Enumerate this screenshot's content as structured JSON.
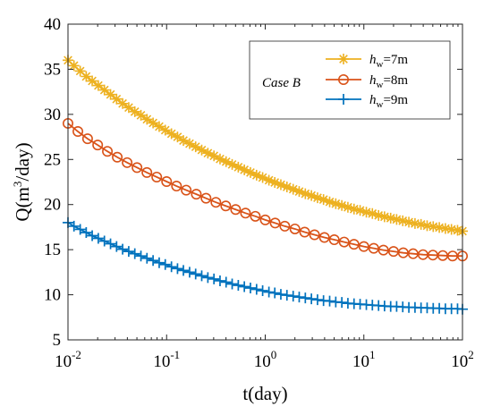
{
  "chart_data": {
    "type": "line",
    "x_scale": "log",
    "xlim": [
      0.01,
      100
    ],
    "ylim": [
      5,
      40
    ],
    "xlabel": "t(day)",
    "ylabel": "Q(m³/day)",
    "ylabel_parts": {
      "pre": "Q(m",
      "sup": "3",
      "post": "/day)"
    },
    "x_ticks": [
      {
        "value": 0.01,
        "base": "10",
        "exp": "-2"
      },
      {
        "value": 0.1,
        "base": "10",
        "exp": "-1"
      },
      {
        "value": 1,
        "base": "10",
        "exp": "0"
      },
      {
        "value": 10,
        "base": "10",
        "exp": "1"
      },
      {
        "value": 100,
        "base": "10",
        "exp": "2"
      }
    ],
    "y_ticks": [
      5,
      10,
      15,
      20,
      25,
      30,
      35,
      40
    ],
    "grid": false,
    "legend": {
      "position": "top-right",
      "title": "Case B"
    },
    "series": [
      {
        "name": "h_w=7m",
        "label_parts": {
          "var": "h",
          "sub": "w",
          "rest": "=7m"
        },
        "color": "#EDB120",
        "marker": "asterisk",
        "x": [
          0.01,
          0.0115,
          0.0133,
          0.0153,
          0.0176,
          0.0203,
          0.0234,
          0.027,
          0.0311,
          0.0358,
          0.0413,
          0.0476,
          0.0549,
          0.0632,
          0.0729,
          0.0841,
          0.0969,
          0.112,
          0.129,
          0.148,
          0.171,
          0.197,
          0.227,
          0.262,
          0.302,
          0.348,
          0.401,
          0.462,
          0.533,
          0.614,
          0.708,
          0.817,
          0.941,
          1.09,
          1.25,
          1.44,
          1.66,
          1.92,
          2.21,
          2.55,
          2.94,
          3.39,
          3.9,
          4.5,
          5.19,
          5.98,
          6.89,
          7.95,
          9.16,
          10.6,
          12.2,
          14.1,
          16.2,
          18.7,
          21.5,
          24.8,
          28.6,
          33,
          38,
          43.8,
          50.5,
          58.2,
          67.1,
          77.3,
          89.1,
          100
        ],
        "y": [
          36.0,
          35.4,
          34.8,
          34.2,
          33.7,
          33.2,
          32.7,
          32.2,
          31.7,
          31.2,
          30.75,
          30.3,
          29.9,
          29.45,
          29.05,
          28.65,
          28.25,
          27.85,
          27.5,
          27.1,
          26.75,
          26.4,
          26.05,
          25.7,
          25.4,
          25.05,
          24.75,
          24.45,
          24.15,
          23.85,
          23.55,
          23.25,
          23.0,
          22.7,
          22.45,
          22.2,
          21.95,
          21.7,
          21.45,
          21.2,
          21.0,
          20.75,
          20.55,
          20.3,
          20.1,
          19.9,
          19.7,
          19.5,
          19.35,
          19.15,
          19.0,
          18.8,
          18.65,
          18.5,
          18.35,
          18.2,
          18.05,
          17.9,
          17.8,
          17.65,
          17.55,
          17.45,
          17.35,
          17.25,
          17.15,
          17.05
        ]
      },
      {
        "name": "h_w=8m",
        "label_parts": {
          "var": "h",
          "sub": "w",
          "rest": "=8m"
        },
        "color": "#D95319",
        "marker": "circle",
        "x": [
          0.01,
          0.0126,
          0.0158,
          0.02,
          0.0251,
          0.0316,
          0.0398,
          0.0501,
          0.0631,
          0.0794,
          0.1,
          0.126,
          0.158,
          0.2,
          0.251,
          0.316,
          0.398,
          0.501,
          0.631,
          0.794,
          1,
          1.26,
          1.58,
          2,
          2.51,
          3.16,
          3.98,
          5.01,
          6.31,
          7.94,
          10,
          12.6,
          15.8,
          20,
          25.1,
          31.6,
          39.8,
          50.1,
          63.1,
          79.4,
          100
        ],
        "y": [
          29.0,
          28.1,
          27.3,
          26.6,
          25.9,
          25.25,
          24.65,
          24.1,
          23.55,
          23.05,
          22.55,
          22.05,
          21.6,
          21.15,
          20.7,
          20.25,
          19.85,
          19.45,
          19.05,
          18.7,
          18.3,
          17.95,
          17.6,
          17.3,
          16.95,
          16.65,
          16.35,
          16.1,
          15.85,
          15.6,
          15.35,
          15.15,
          14.95,
          14.8,
          14.65,
          14.55,
          14.45,
          14.4,
          14.35,
          14.3,
          14.3
        ]
      },
      {
        "name": "h_w=9m",
        "label_parts": {
          "var": "h",
          "sub": "w",
          "rest": "=9m"
        },
        "color": "#0072BD",
        "marker": "plus",
        "x": [
          0.01,
          0.0115,
          0.0133,
          0.0153,
          0.0176,
          0.0203,
          0.0234,
          0.027,
          0.0311,
          0.0358,
          0.0413,
          0.0476,
          0.0549,
          0.0632,
          0.0729,
          0.0841,
          0.0969,
          0.112,
          0.129,
          0.148,
          0.171,
          0.197,
          0.227,
          0.262,
          0.302,
          0.348,
          0.401,
          0.462,
          0.533,
          0.614,
          0.708,
          0.817,
          0.941,
          1.09,
          1.25,
          1.44,
          1.66,
          1.92,
          2.21,
          2.55,
          2.94,
          3.39,
          3.9,
          4.5,
          5.19,
          5.98,
          6.89,
          7.95,
          9.16,
          10.6,
          12.2,
          14.1,
          16.2,
          18.7,
          21.5,
          24.8,
          28.6,
          33,
          38,
          43.8,
          50.5,
          58.2,
          67.1,
          77.3,
          89.1,
          100
        ],
        "y": [
          18.0,
          17.6,
          17.25,
          16.9,
          16.55,
          16.25,
          15.95,
          15.65,
          15.35,
          15.05,
          14.8,
          14.55,
          14.3,
          14.05,
          13.8,
          13.55,
          13.35,
          13.1,
          12.9,
          12.7,
          12.5,
          12.3,
          12.1,
          11.9,
          11.75,
          11.55,
          11.4,
          11.2,
          11.05,
          10.9,
          10.75,
          10.6,
          10.45,
          10.3,
          10.2,
          10.05,
          9.95,
          9.85,
          9.75,
          9.65,
          9.55,
          9.45,
          9.35,
          9.3,
          9.2,
          9.15,
          9.05,
          9.0,
          8.95,
          8.9,
          8.85,
          8.8,
          8.75,
          8.7,
          8.7,
          8.65,
          8.6,
          8.6,
          8.55,
          8.55,
          8.5,
          8.5,
          8.45,
          8.45,
          8.45,
          8.4
        ]
      }
    ]
  }
}
